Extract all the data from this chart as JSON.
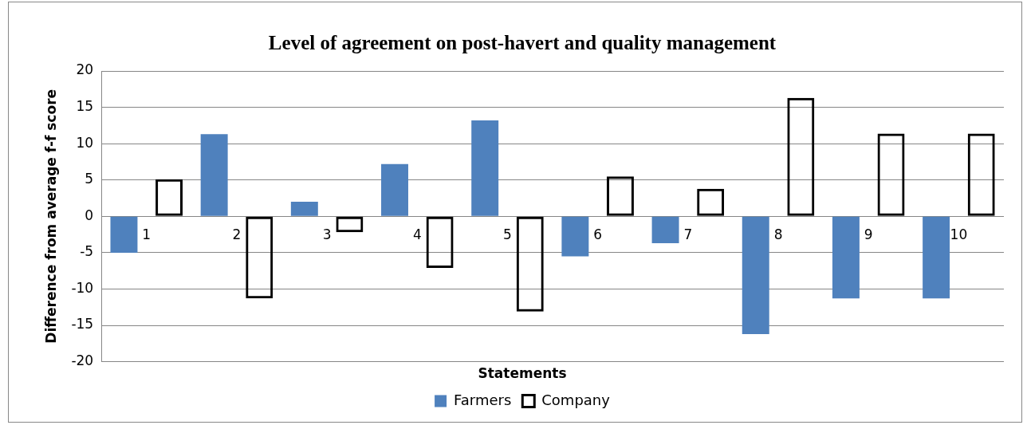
{
  "chart_data": {
    "type": "bar",
    "title": "Level of agreement on post-havert and quality management",
    "xlabel": "Statements",
    "ylabel": "Difference from average f-f score",
    "categories": [
      "1",
      "2",
      "3",
      "4",
      "5",
      "6",
      "7",
      "8",
      "9",
      "10"
    ],
    "series": [
      {
        "name": "Farmers",
        "color": "#4f81bd",
        "values": [
          -5.0,
          11.3,
          2.0,
          7.2,
          13.2,
          -5.5,
          -3.7,
          -16.2,
          -11.3,
          -11.3
        ]
      },
      {
        "name": "Company",
        "color": "#000000",
        "values": [
          5.1,
          -11.3,
          -2.2,
          -7.1,
          -13.1,
          5.5,
          3.8,
          16.3,
          11.4,
          11.4
        ]
      }
    ],
    "ylim": [
      -20,
      20
    ],
    "yticks": [
      -20,
      -15,
      -10,
      -5,
      0,
      5,
      10,
      15,
      20
    ],
    "grid": "y",
    "legend": "bottom"
  }
}
